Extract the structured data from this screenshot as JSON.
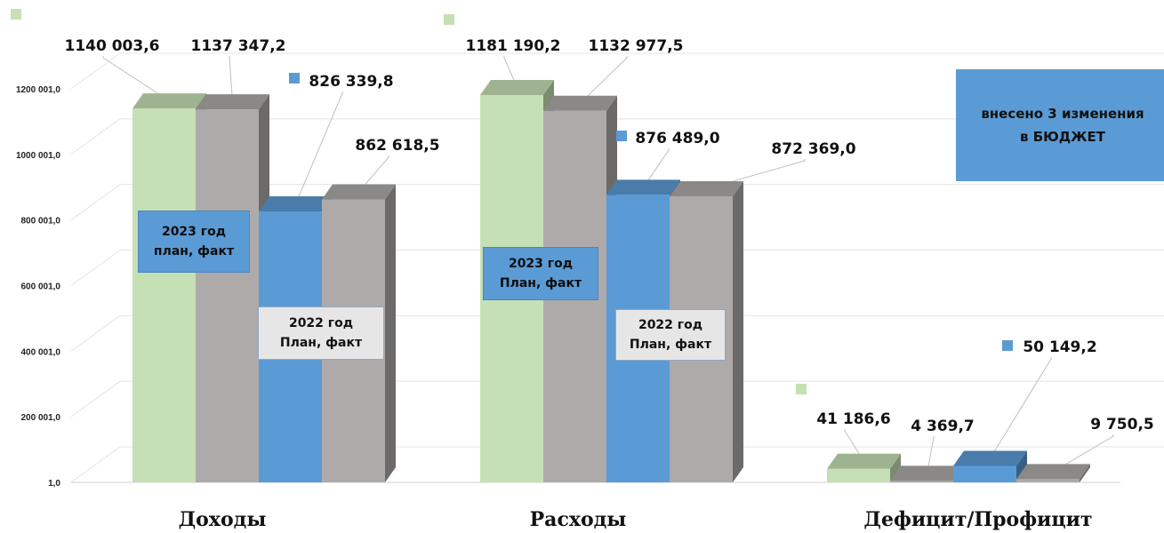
{
  "chart_data": {
    "type": "bar",
    "categories": [
      "Доходы",
      "Расходы",
      "Дефицит/Профицит"
    ],
    "series": [
      {
        "values": [
          1140003.6,
          1181190.2,
          41186.6
        ]
      },
      {
        "values": [
          1137347.2,
          1132977.5,
          4369.7
        ]
      },
      {
        "values": [
          826339.8,
          876489.0,
          50149.2
        ]
      },
      {
        "values": [
          862618.5,
          872369.0,
          9750.5
        ]
      }
    ],
    "value_labels": [
      [
        "1140 003,6",
        "1137 347,2",
        "826 339,8",
        "862 618,5"
      ],
      [
        "1181 190,2",
        "1132 977,5",
        "876 489,0",
        "872 369,0"
      ],
      [
        "41 186,6",
        "4 369,7",
        "50 149,2",
        "9 750,5"
      ]
    ],
    "y_ticks": [
      "1,0",
      "200 001,0",
      "400 001,0",
      "600 001,0",
      "800 001,0",
      "1000 001,0",
      "1200 001,0"
    ],
    "y_tick_values": [
      1,
      200001,
      400001,
      600001,
      800001,
      1000001,
      1200001
    ],
    "ylim": [
      1,
      1200001
    ],
    "grid": true,
    "title": "",
    "xlabel": "",
    "ylabel": "",
    "colors": {
      "light_green": "#c5e0b4",
      "grey": "#aeaaaa",
      "blue": "#5b9bd5"
    }
  },
  "annotations": {
    "group1_2023": "2023 год\nплан, факт",
    "group1_2022": "2022 год\nПлан, факт",
    "group2_2023": "2023 год\nПлан, факт",
    "group2_2022": "2022 год\nПлан, факт",
    "changes_note": "внесено 3 изменения\nв БЮДЖЕТ"
  }
}
